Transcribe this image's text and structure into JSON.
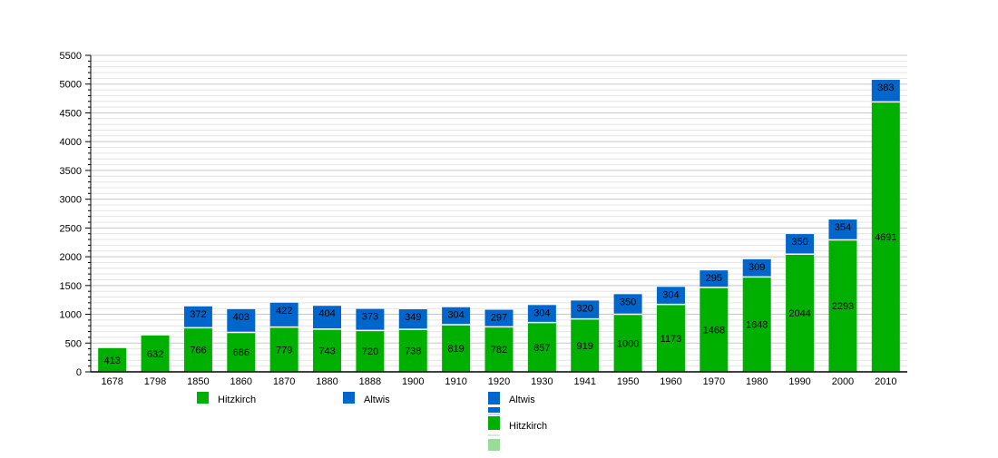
{
  "chart_data": {
    "type": "bar",
    "stacked": true,
    "categories": [
      "1678",
      "1798",
      "1850",
      "1860",
      "1870",
      "1880",
      "1888",
      "1900",
      "1910",
      "1920",
      "1930",
      "1941",
      "1950",
      "1960",
      "1970",
      "1980",
      "1990",
      "2000",
      "2010"
    ],
    "series": [
      {
        "name": "Hitzkirch",
        "color": "#00b000",
        "values": [
          413,
          632,
          766,
          686,
          779,
          743,
          720,
          738,
          819,
          782,
          857,
          919,
          1000,
          1173,
          1468,
          1648,
          2044,
          2293,
          4691
        ]
      },
      {
        "name": "Altwis",
        "color": "#0066cc",
        "values": [
          null,
          null,
          372,
          403,
          422,
          404,
          373,
          349,
          304,
          297,
          304,
          320,
          350,
          304,
          295,
          309,
          350,
          354,
          383
        ]
      }
    ],
    "ylim": [
      0,
      5500
    ],
    "yticks": [
      0,
      500,
      1000,
      1500,
      2000,
      2500,
      3000,
      3500,
      4000,
      4500,
      5000,
      5500
    ],
    "grid": true,
    "title": "",
    "xlabel": "",
    "ylabel": "",
    "legend_position": "bottom",
    "legend_extra": [
      {
        "name": "Altwis",
        "color": "#0066cc"
      },
      {
        "name": "Hitzkirch",
        "color": "#00b000"
      },
      {
        "name": "",
        "color": "#99dd99"
      }
    ]
  }
}
